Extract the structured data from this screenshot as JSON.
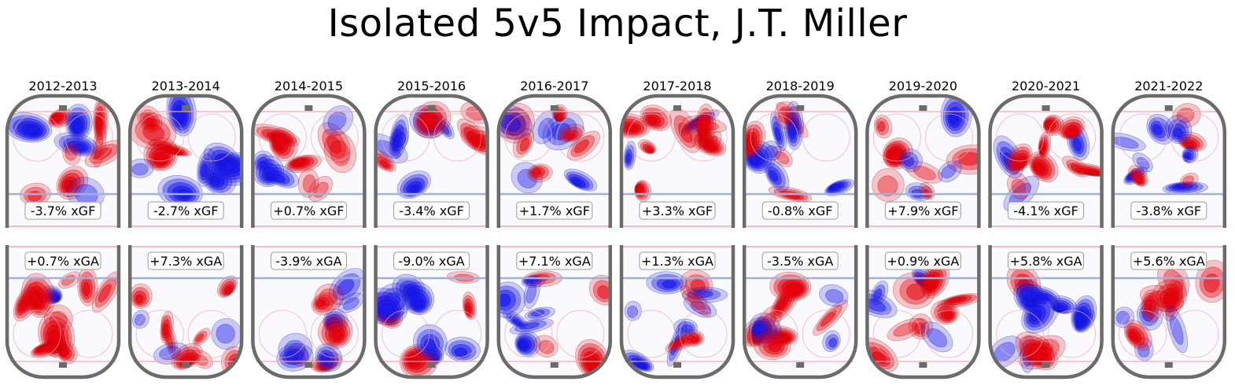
{
  "chart_data": {
    "type": "heatmap",
    "title": "Isolated 5v5 Impact, J.T. Miller",
    "description": "Offensive (top half-rink, xGF) and defensive (bottom half-rink, xGA) isolated shot-rate impact maps by season; red = above average, blue = below average",
    "colors": {
      "positive": "#e8000b",
      "negative": "#1a1aee",
      "board": "#6b6b6b",
      "blue_line": "#9fb1d9",
      "red_line": "#f0a8b0"
    },
    "panels": [
      {
        "season": "2012-2013",
        "xgf": "-3.7% xGF",
        "xga": "+0.7% xGA"
      },
      {
        "season": "2013-2014",
        "xgf": "-2.7% xGF",
        "xga": "+7.3% xGA"
      },
      {
        "season": "2014-2015",
        "xgf": "+0.7% xGF",
        "xga": "-3.9% xGA"
      },
      {
        "season": "2015-2016",
        "xgf": "-3.4% xGF",
        "xga": "-9.0% xGA"
      },
      {
        "season": "2016-2017",
        "xgf": "+1.7% xGF",
        "xga": "+7.1% xGA"
      },
      {
        "season": "2017-2018",
        "xgf": "+3.3% xGF",
        "xga": "+1.3% xGA"
      },
      {
        "season": "2018-2019",
        "xgf": "-0.8% xGF",
        "xga": "-3.5% xGA"
      },
      {
        "season": "2019-2020",
        "xgf": "+7.9% xGF",
        "xga": "+0.9% xGA"
      },
      {
        "season": "2020-2021",
        "xgf": "-4.1% xGF",
        "xga": "+5.8% xGA"
      },
      {
        "season": "2021-2022",
        "xgf": "-3.8% xGF",
        "xga": "+5.6% xGA"
      }
    ],
    "values_xgf_pct": [
      -3.7,
      -2.7,
      0.7,
      -3.4,
      1.7,
      3.3,
      -0.8,
      7.9,
      -4.1,
      -3.8
    ],
    "values_xga_pct": [
      0.7,
      7.3,
      -3.9,
      -9.0,
      7.1,
      1.3,
      -3.5,
      0.9,
      5.8,
      5.6
    ]
  }
}
